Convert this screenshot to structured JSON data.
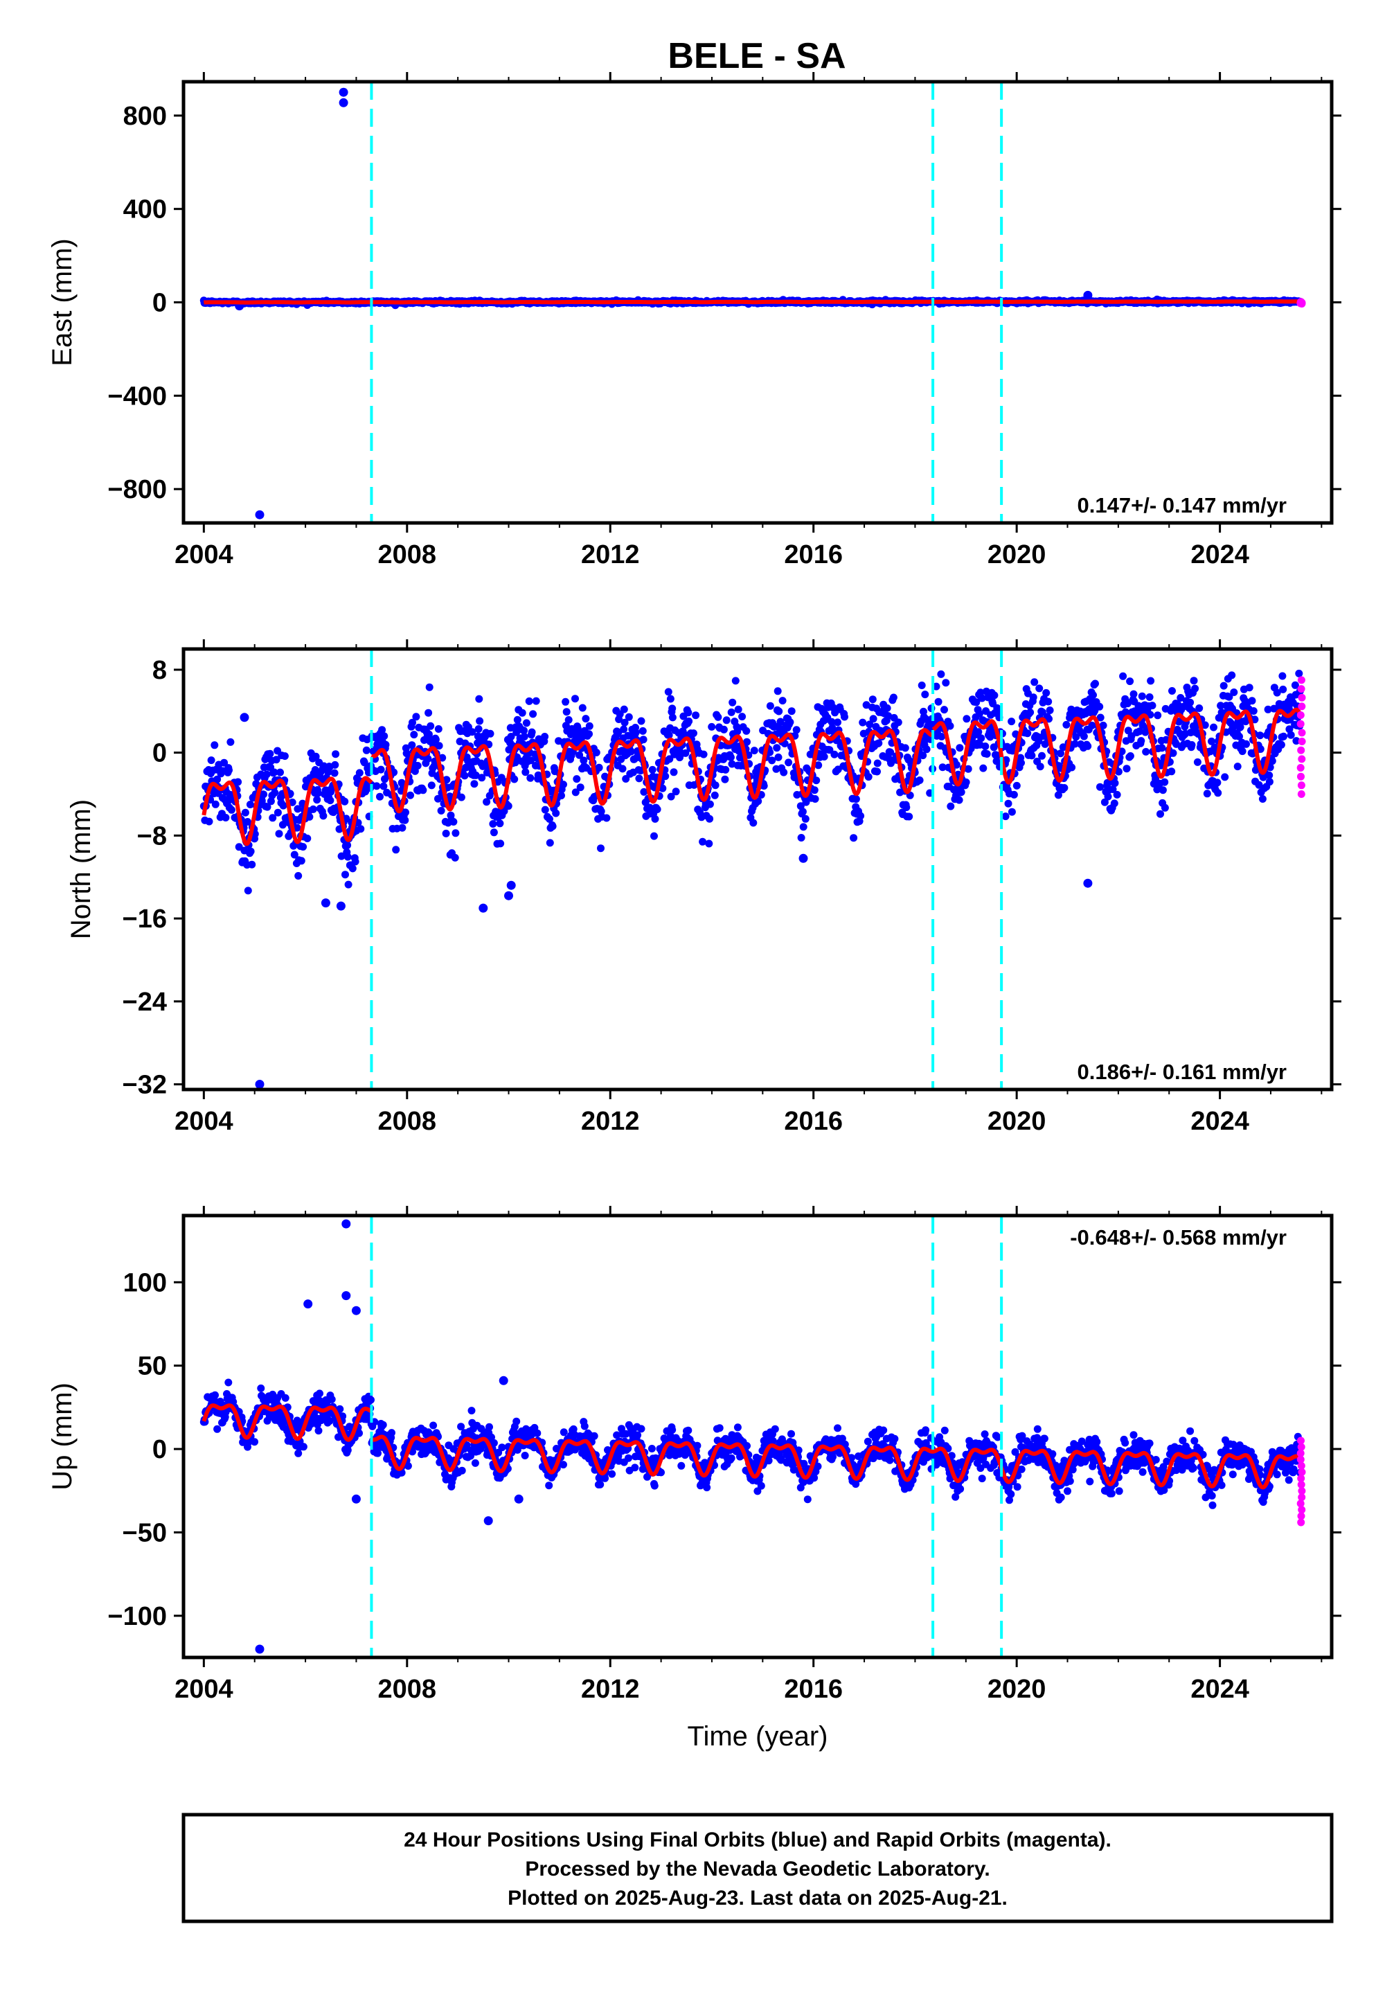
{
  "title": "BELE - SA",
  "colors": {
    "final_orbits": "#0000ff",
    "rapid_orbits": "#ff00ff",
    "model": "#ff0000",
    "equipment_change": "#00ffff"
  },
  "chart_data": [
    {
      "type": "scatter",
      "id": "east",
      "ylabel": "East (mm)",
      "xlabel": "",
      "xlim": [
        2003.6,
        2026.2
      ],
      "ylim": [
        -945,
        945
      ],
      "xticks": [
        2004,
        2008,
        2012,
        2016,
        2020,
        2024
      ],
      "xtick_labels": [
        "2004",
        "2008",
        "2012",
        "2016",
        "2020",
        "2024"
      ],
      "yticks": [
        -800,
        -400,
        0,
        400,
        800
      ],
      "ytick_labels": [
        "−800",
        "−400",
        "0",
        "400",
        "800"
      ],
      "rate_text": "0.147+/- 0.147 mm/yr",
      "model": {
        "offset": 0,
        "slope": 0.147,
        "annual_amp": 0.6
      },
      "scatter_noise": 3,
      "outliers": [
        [
          2006.75,
          900
        ],
        [
          2006.75,
          855
        ],
        [
          2005.1,
          -910
        ],
        [
          2021.4,
          30
        ],
        [
          2004.7,
          -15
        ]
      ],
      "rapid_range": [
        -6,
        2
      ],
      "breaks": [
        2007.3,
        2018.35,
        2019.7
      ]
    },
    {
      "type": "scatter",
      "id": "north",
      "ylabel": "North (mm)",
      "xlabel": "",
      "xlim": [
        2003.6,
        2026.2
      ],
      "ylim": [
        -32.5,
        10
      ],
      "xticks": [
        2004,
        2008,
        2012,
        2016,
        2020,
        2024
      ],
      "xtick_labels": [
        "2004",
        "2008",
        "2012",
        "2016",
        "2020",
        "2024"
      ],
      "yticks": [
        -32,
        -24,
        -16,
        -8,
        0,
        8
      ],
      "ytick_labels": [
        "−32",
        "−24",
        "−16",
        "−8",
        "0",
        "8"
      ],
      "rate_text": "0.186+/- 0.161 mm/yr",
      "model_segments": [
        {
          "start": 2004.0,
          "end": 2007.3,
          "offset": -5.0
        },
        {
          "start": 2007.3,
          "end": 2018.35,
          "offset": -1.8
        },
        {
          "start": 2018.35,
          "end": 2025.6,
          "offset": 0.8
        }
      ],
      "model": {
        "slope": 0.186,
        "annual_amp": 3.6
      },
      "scatter_noise": 1.9,
      "outliers": [
        [
          2005.1,
          -32
        ],
        [
          2006.4,
          -14.5
        ],
        [
          2006.7,
          -14.8
        ],
        [
          2009.5,
          -15
        ],
        [
          2010.0,
          -13.8
        ],
        [
          2010.05,
          -12.8
        ],
        [
          2015.8,
          -10.2
        ],
        [
          2021.4,
          -12.6
        ],
        [
          2004.8,
          3.4
        ]
      ],
      "rapid_range": [
        -4,
        7
      ],
      "breaks": [
        2007.3,
        2018.35,
        2019.7
      ]
    },
    {
      "type": "scatter",
      "id": "up",
      "ylabel": "Up (mm)",
      "xlabel": "Time (year)",
      "xlim": [
        2003.6,
        2026.2
      ],
      "ylim": [
        -125,
        140
      ],
      "xticks": [
        2004,
        2008,
        2012,
        2016,
        2020,
        2024
      ],
      "xtick_labels": [
        "2004",
        "2008",
        "2012",
        "2016",
        "2020",
        "2024"
      ],
      "yticks": [
        -100,
        -50,
        0,
        50,
        100
      ],
      "ytick_labels": [
        "−100",
        "−50",
        "0",
        "50",
        "100"
      ],
      "rate_text": "-0.648+/- 0.568 mm/yr",
      "model_segments": [
        {
          "start": 2004.0,
          "end": 2007.3,
          "offset": 20
        },
        {
          "start": 2007.3,
          "end": 2025.6,
          "offset": 1
        }
      ],
      "model": {
        "slope": -0.648,
        "annual_amp": 11.5
      },
      "scatter_noise": 5,
      "outliers": [
        [
          2006.05,
          87
        ],
        [
          2006.8,
          135
        ],
        [
          2006.8,
          92
        ],
        [
          2007.0,
          83
        ],
        [
          2007.0,
          -30
        ],
        [
          2009.6,
          -43
        ],
        [
          2010.2,
          -30
        ],
        [
          2005.1,
          -120
        ],
        [
          2009.9,
          41
        ]
      ],
      "rapid_range": [
        -44,
        5
      ],
      "breaks": [
        2007.3,
        2018.35,
        2019.7
      ]
    }
  ],
  "caption": {
    "line1": "24 Hour Positions Using Final Orbits (blue) and Rapid Orbits (magenta).",
    "line2": "Processed by the Nevada Geodetic Laboratory.",
    "line3": "Plotted on 2025-Aug-23. Last data on 2025-Aug-21."
  }
}
